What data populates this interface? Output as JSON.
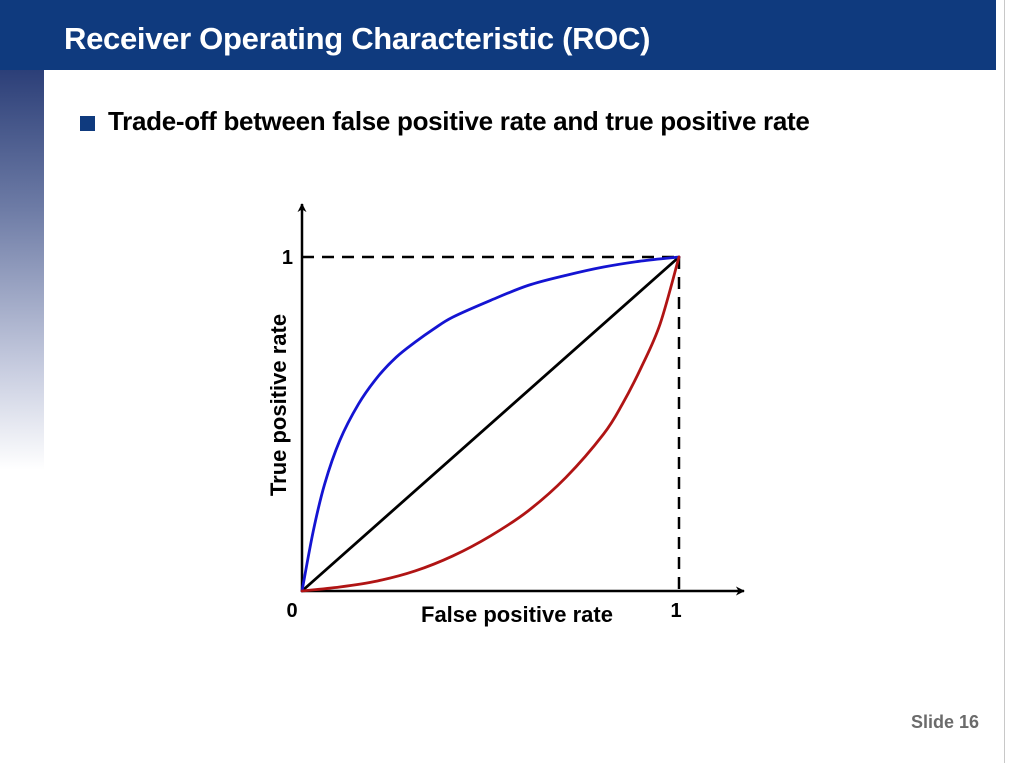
{
  "slide": {
    "title": "Receiver Operating Characteristic (ROC)",
    "bullet": "Trade-off between false positive rate and true positive rate",
    "slide_number": "Slide 16",
    "colors": {
      "title_bar": "#0f3a7e",
      "bullet": "#0f3a7e"
    }
  },
  "chart_data": {
    "type": "line",
    "title": "",
    "xlabel": "False positive rate",
    "ylabel": "True positive rate",
    "xlim": [
      0,
      1
    ],
    "ylim": [
      0,
      1
    ],
    "grid": false,
    "x_ticks": [
      {
        "value": 0,
        "label": "0"
      },
      {
        "value": 1,
        "label": "1"
      }
    ],
    "y_ticks": [
      {
        "value": 1,
        "label": "1"
      }
    ],
    "reference_lines": [
      {
        "id": "top-dashed",
        "style": "dashed",
        "color": "#000000",
        "points": [
          [
            0,
            1
          ],
          [
            1,
            1
          ]
        ]
      },
      {
        "id": "right-dashed",
        "style": "dashed",
        "color": "#000000",
        "points": [
          [
            1,
            1
          ],
          [
            1,
            0
          ]
        ]
      }
    ],
    "series": [
      {
        "id": "diagonal",
        "color": "#000000",
        "points": [
          [
            0,
            0
          ],
          [
            1,
            1
          ]
        ]
      },
      {
        "id": "upper-curve",
        "color": "#1414d2",
        "points": [
          [
            0,
            0
          ],
          [
            0.03,
            0.18
          ],
          [
            0.06,
            0.32
          ],
          [
            0.1,
            0.45
          ],
          [
            0.15,
            0.56
          ],
          [
            0.2,
            0.64
          ],
          [
            0.25,
            0.7
          ],
          [
            0.3,
            0.745
          ],
          [
            0.35,
            0.785
          ],
          [
            0.4,
            0.82
          ],
          [
            0.5,
            0.87
          ],
          [
            0.6,
            0.915
          ],
          [
            0.7,
            0.945
          ],
          [
            0.8,
            0.97
          ],
          [
            0.9,
            0.988
          ],
          [
            1,
            1
          ]
        ]
      },
      {
        "id": "lower-curve",
        "color": "#b01414",
        "points": [
          [
            0,
            0
          ],
          [
            0.1,
            0.012
          ],
          [
            0.2,
            0.03
          ],
          [
            0.3,
            0.06
          ],
          [
            0.4,
            0.105
          ],
          [
            0.5,
            0.165
          ],
          [
            0.6,
            0.24
          ],
          [
            0.7,
            0.34
          ],
          [
            0.8,
            0.47
          ],
          [
            0.85,
            0.56
          ],
          [
            0.9,
            0.67
          ],
          [
            0.95,
            0.8
          ],
          [
            1,
            1
          ]
        ]
      }
    ]
  }
}
